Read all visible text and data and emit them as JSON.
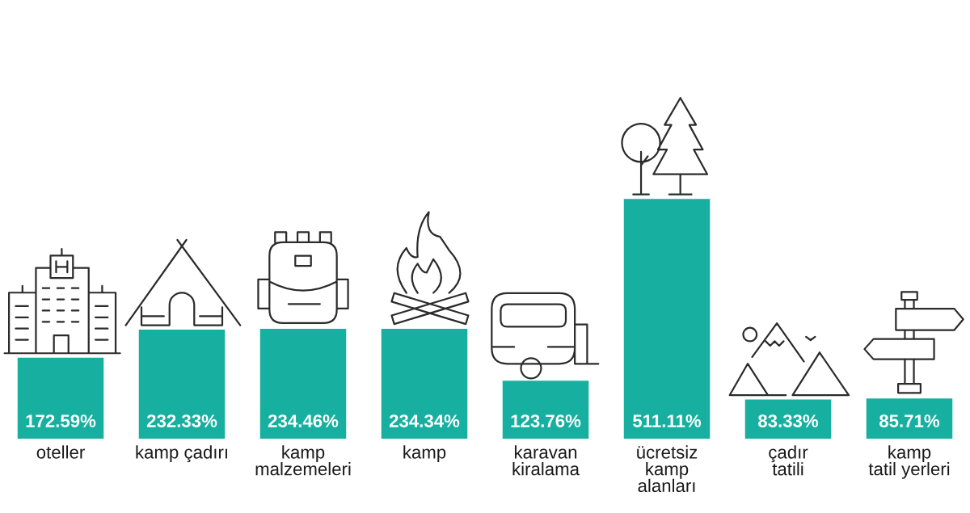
{
  "chart_data": {
    "type": "bar",
    "categories": [
      "oteller",
      "kamp çadırı",
      "kamp\nmalzemeleri",
      "kamp",
      "karavan\nkiralama",
      "ücretsiz\nkamp\nalanları",
      "çadır\ntatili",
      "kamp\ntatil yerleri"
    ],
    "values": [
      172.59,
      232.33,
      234.46,
      234.34,
      123.76,
      511.11,
      83.33,
      85.71
    ],
    "value_labels": [
      "172.59%",
      "232.33%",
      "234.46%",
      "234.34%",
      "123.76%",
      "511.11%",
      "83.33%",
      "85.71%"
    ],
    "color": "#17b0a0"
  }
}
